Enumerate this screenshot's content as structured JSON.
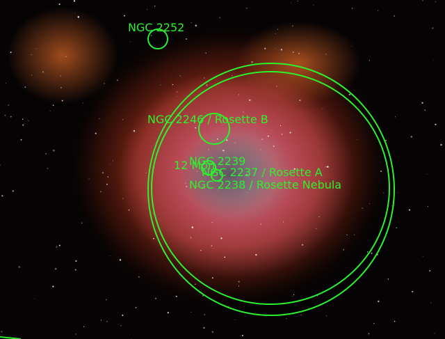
{
  "annotations": [
    {
      "label": "NGC 2252"
    },
    {
      "label": "NGC 2246 / Rosette B"
    },
    {
      "label": "NGC 2239"
    },
    {
      "label": "12 Mon"
    },
    {
      "label": "NGC 2237 / Rosette A"
    },
    {
      "label": "NGC 2238 / Rosette Nebula"
    }
  ]
}
